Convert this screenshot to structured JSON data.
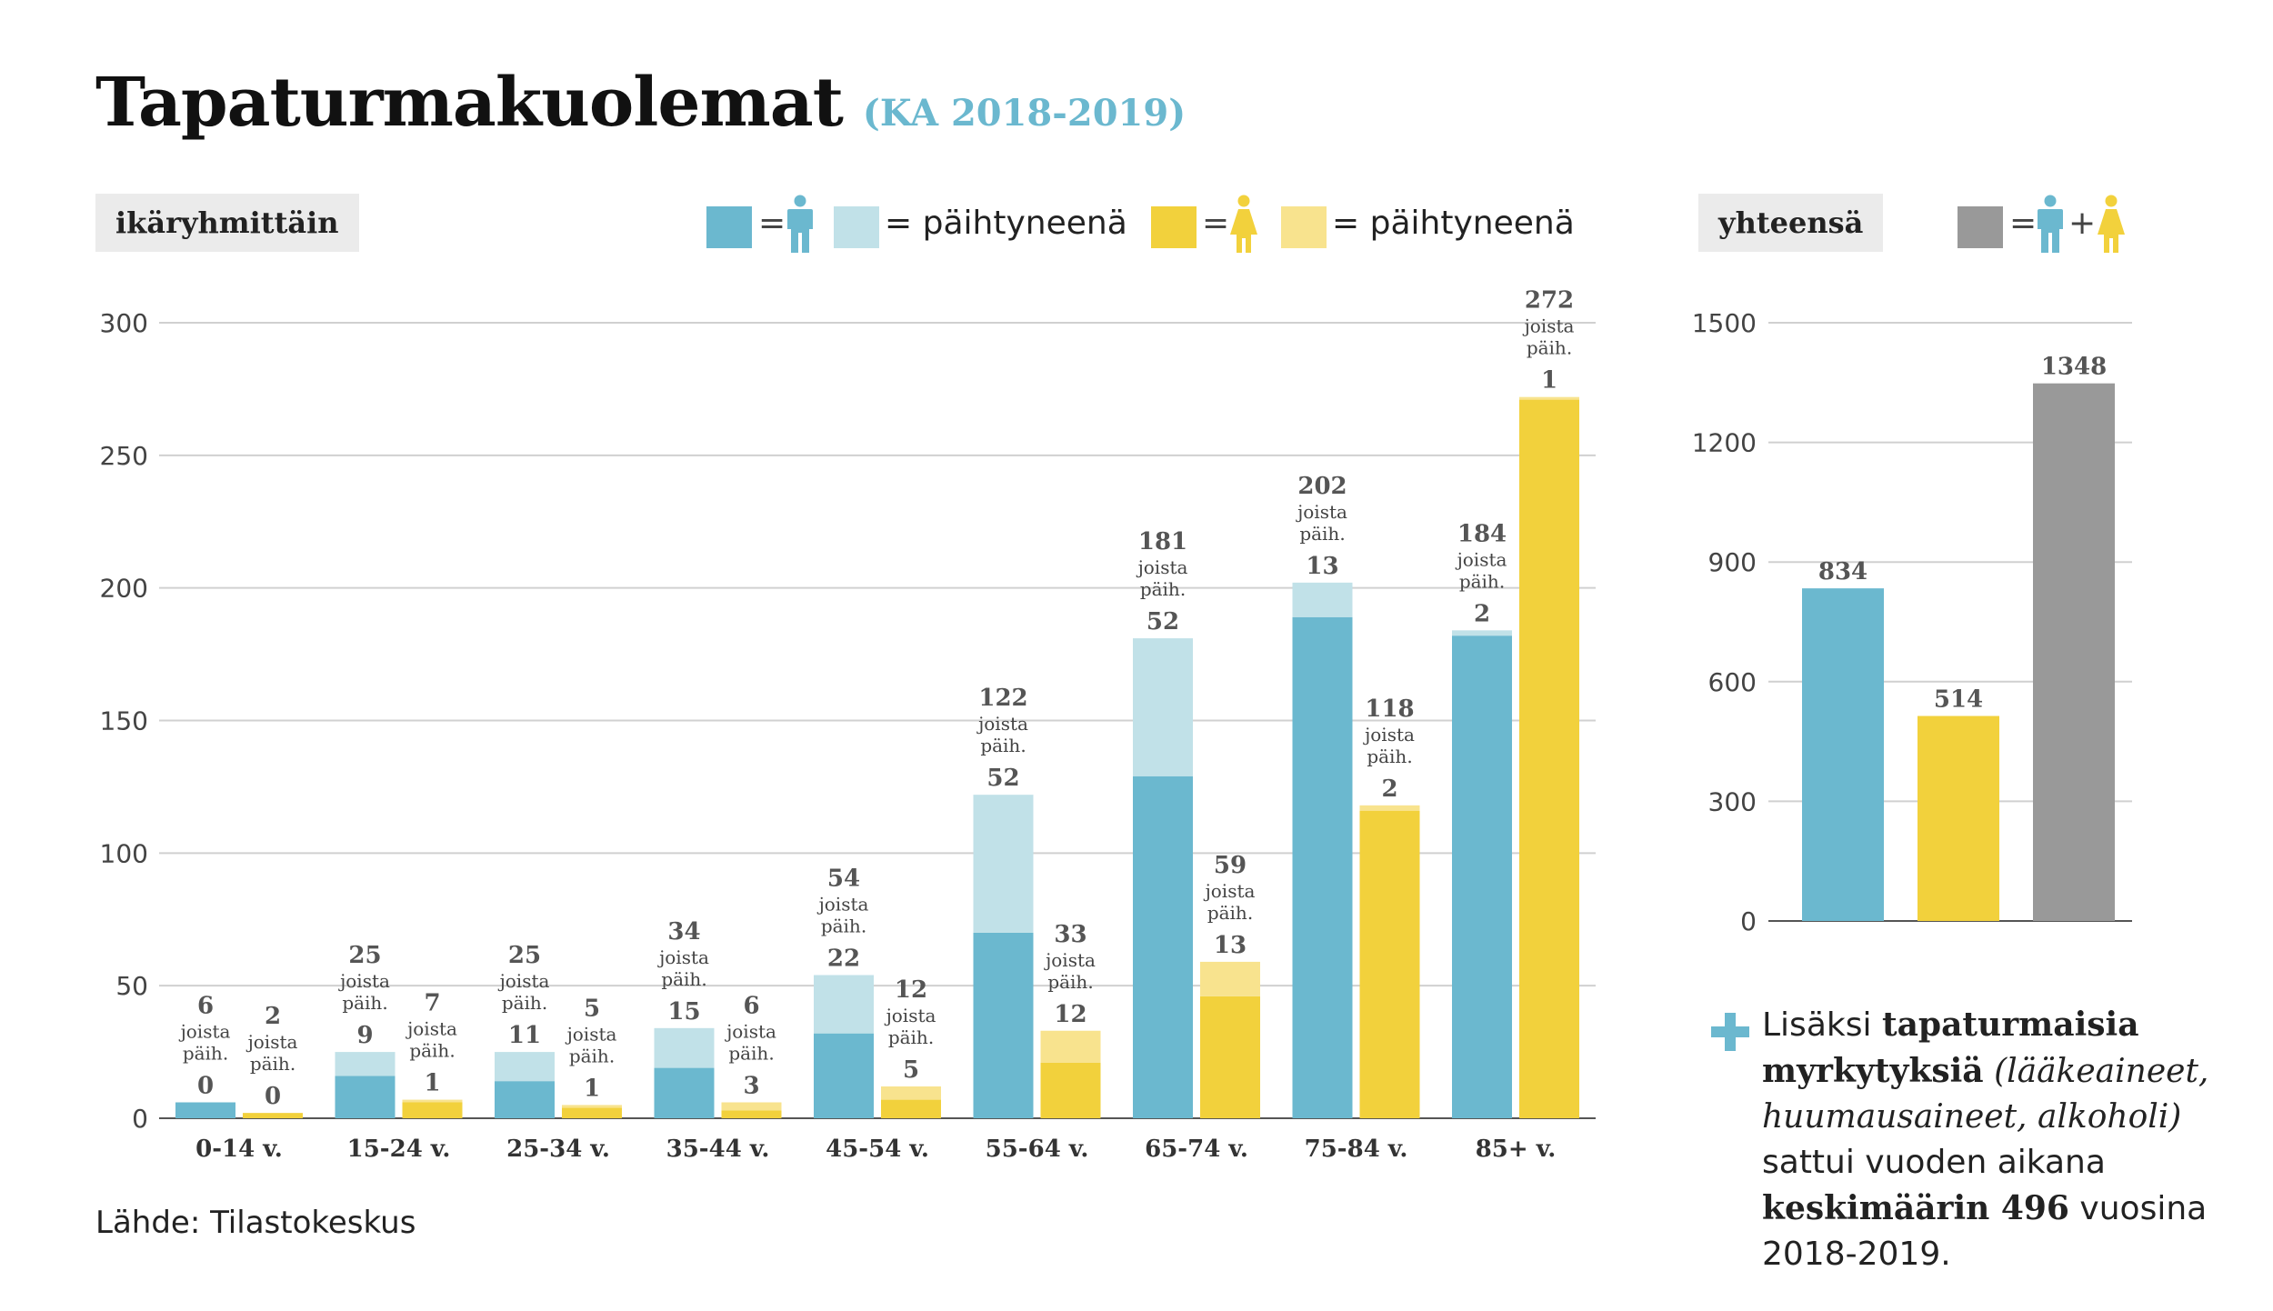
{
  "header": {
    "title": "Tapaturmakuolemat",
    "subtitle": "(KA 2018-2019)"
  },
  "tags": {
    "left": "ikäryhmittäin",
    "right": "yhteensä"
  },
  "legend": {
    "men_intox": "= päihtyneenä",
    "women_intox": "= päihtyneenä",
    "eq": "=",
    "plus": "+"
  },
  "colors": {
    "men": "#6bb8cf",
    "men_intox": "#c1e1e8",
    "women": "#f2d13c",
    "women_intox": "#f8e38e",
    "total": "#999999",
    "grid": "#d0d0d0"
  },
  "joista_label": [
    "joista",
    "päih."
  ],
  "chart_data": [
    {
      "type": "bar",
      "title": "ikäryhmittäin",
      "ylim": [
        0,
        300
      ],
      "yticks": [
        0,
        50,
        100,
        150,
        200,
        250,
        300
      ],
      "grid": true,
      "categories": [
        "0-14 v.",
        "15-24 v.",
        "25-34 v.",
        "35-44 v.",
        "45-54 v.",
        "55-64 v.",
        "65-74 v.",
        "75-84 v.",
        "85+ v."
      ],
      "series": [
        {
          "total": [
            6,
            25,
            25,
            34,
            54,
            122,
            181,
            202,
            184
          ],
          "intoxicated": [
            0,
            9,
            11,
            15,
            22,
            52,
            52,
            13,
            2
          ]
        },
        {
          "total": [
            2,
            7,
            5,
            6,
            12,
            33,
            59,
            118,
            272
          ],
          "intoxicated": [
            0,
            1,
            1,
            3,
            5,
            12,
            13,
            2,
            1
          ]
        }
      ]
    },
    {
      "type": "bar",
      "title": "yhteensä",
      "ylim": [
        0,
        1500
      ],
      "yticks": [
        0,
        300,
        600,
        900,
        1200,
        1500
      ],
      "grid": true,
      "values": [
        834,
        514,
        1348
      ]
    }
  ],
  "source": "Lähde: Tilastokeskus",
  "note": {
    "t1": "Lisäksi ",
    "b1": "tapaturmaisia myrkytyksiä",
    "i1": "(lääkeaineet, huumausaineet, alkoholi)",
    "t2": " sattui vuoden aikana ",
    "b2": "keskimäärin 496",
    "t3": " vuosina 2018-2019."
  }
}
